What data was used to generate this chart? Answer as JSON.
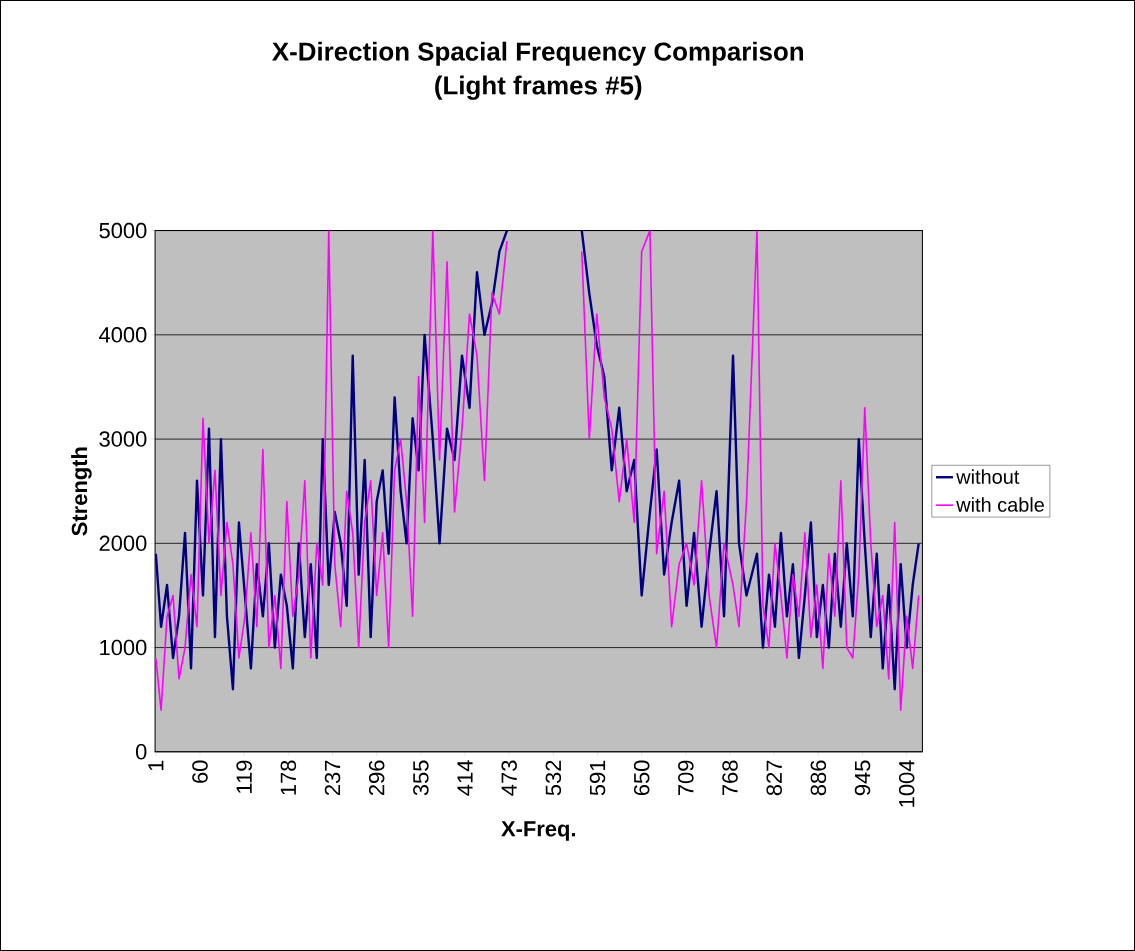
{
  "chart_data": {
    "type": "line",
    "title": "X-Direction Spacial Frequency Comparison\n(Light frames #5)",
    "xlabel": "X-Freq.",
    "ylabel": "Strength",
    "x": [
      1,
      8,
      16,
      24,
      32,
      40,
      48,
      56,
      64,
      72,
      80,
      88,
      96,
      104,
      112,
      120,
      128,
      136,
      144,
      152,
      160,
      168,
      176,
      184,
      192,
      200,
      208,
      216,
      224,
      232,
      240,
      248,
      256,
      264,
      272,
      280,
      288,
      296,
      304,
      312,
      320,
      328,
      336,
      344,
      352,
      360,
      371,
      380,
      390,
      400,
      410,
      420,
      430,
      440,
      450,
      460,
      470,
      480,
      560,
      570,
      580,
      590,
      600,
      610,
      620,
      630,
      640,
      650,
      661,
      670,
      680,
      690,
      700,
      710,
      720,
      730,
      740,
      750,
      760,
      772,
      780,
      790,
      804,
      812,
      820,
      828,
      836,
      844,
      852,
      860,
      868,
      876,
      884,
      892,
      900,
      908,
      916,
      924,
      932,
      940,
      948,
      956,
      964,
      972,
      980,
      988,
      996,
      1004,
      1012,
      1020
    ],
    "series": [
      {
        "name": "without",
        "color": "#000080",
        "values": [
          1900,
          1200,
          1600,
          900,
          1300,
          2100,
          800,
          2600,
          1500,
          3100,
          1100,
          3000,
          1300,
          600,
          2200,
          1500,
          800,
          1800,
          1300,
          2000,
          1000,
          1700,
          1400,
          800,
          2000,
          1100,
          1800,
          900,
          3000,
          1600,
          2300,
          2000,
          1400,
          3800,
          1700,
          2800,
          1100,
          2400,
          2700,
          1900,
          3400,
          2500,
          2000,
          3200,
          2700,
          4000,
          3000,
          2000,
          3100,
          2800,
          3800,
          3300,
          4600,
          4000,
          4300,
          4800,
          5000,
          null,
          null,
          5000,
          4400,
          3900,
          3600,
          2700,
          3300,
          2500,
          2800,
          1500,
          2300,
          2900,
          1700,
          2200,
          2600,
          1400,
          2100,
          1200,
          1900,
          2500,
          1300,
          3800,
          2000,
          1500,
          1900,
          1000,
          1700,
          1200,
          2100,
          1300,
          1800,
          900,
          1500,
          2200,
          1100,
          1600,
          1000,
          1900,
          1200,
          2000,
          1300,
          3000,
          2000,
          1100,
          1900,
          800,
          1600,
          600,
          1800,
          1000,
          1600,
          2000
        ]
      },
      {
        "name": "with cable",
        "color": "#ff00ff",
        "values": [
          900,
          400,
          1300,
          1500,
          700,
          1000,
          1700,
          1200,
          3200,
          2000,
          2700,
          1500,
          2200,
          1800,
          900,
          1300,
          2100,
          1200,
          2900,
          1000,
          1500,
          800,
          2400,
          1300,
          1700,
          2600,
          900,
          2000,
          1600,
          5000,
          1800,
          1200,
          2500,
          2100,
          1000,
          2200,
          2600,
          1500,
          2100,
          1000,
          2700,
          3000,
          2400,
          1300,
          3600,
          2200,
          5000,
          2800,
          4700,
          2300,
          3100,
          4200,
          3800,
          2600,
          4400,
          4200,
          4900,
          null,
          null,
          4800,
          3000,
          4200,
          3400,
          3100,
          2400,
          3000,
          2200,
          4800,
          5000,
          1900,
          2500,
          1200,
          1800,
          2000,
          1600,
          2600,
          1500,
          1000,
          2000,
          1600,
          1200,
          2400,
          5000,
          1400,
          1000,
          2000,
          1500,
          900,
          1700,
          1300,
          2100,
          1100,
          1600,
          800,
          1900,
          1300,
          2600,
          1000,
          900,
          1700,
          3300,
          2000,
          1200,
          1500,
          700,
          2200,
          400,
          1300,
          800,
          1500
        ]
      }
    ],
    "xlim": [
      0,
      1025
    ],
    "xticks": [
      1,
      60,
      119,
      178,
      237,
      296,
      355,
      414,
      473,
      532,
      591,
      650,
      709,
      768,
      827,
      886,
      945,
      1004
    ],
    "ylim": [
      0,
      5000
    ],
    "yticks": [
      0,
      1000,
      2000,
      3000,
      4000,
      5000
    ],
    "grid": "y",
    "legend": "right",
    "marker": "none",
    "line_style": "solid"
  }
}
